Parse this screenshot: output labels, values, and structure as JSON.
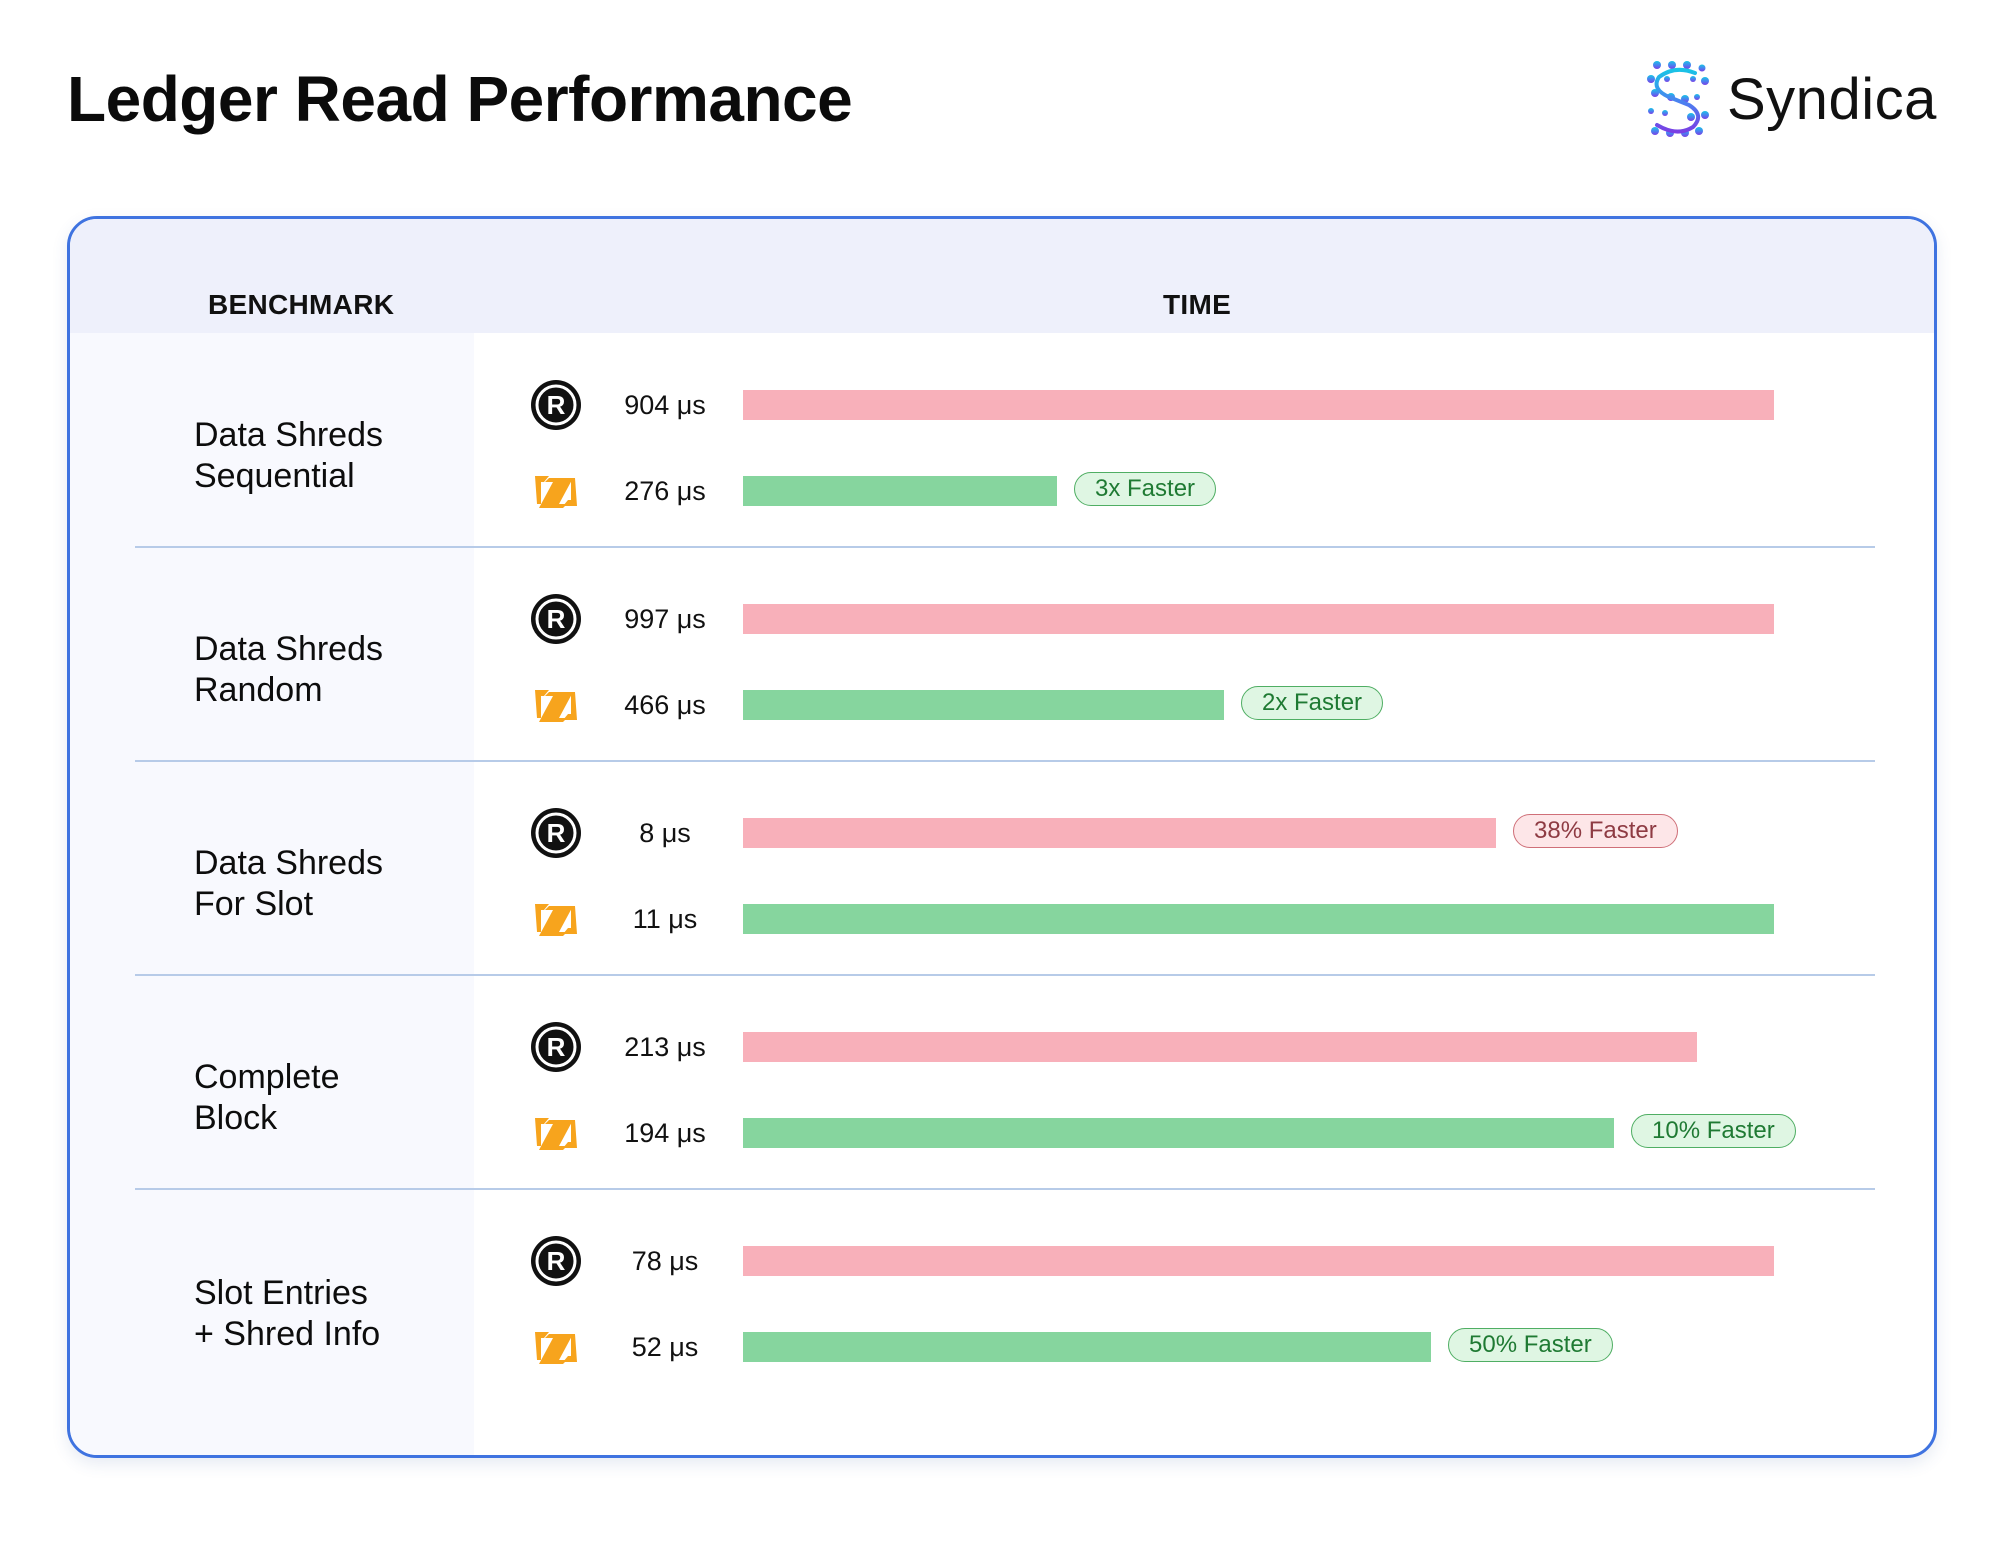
{
  "header": {
    "title": "Ledger Read Performance"
  },
  "brand": {
    "name": "Syndica"
  },
  "table": {
    "col_benchmark": "BENCHMARK",
    "col_time": "TIME"
  },
  "colors": {
    "rust_bar": "#f8b0ba",
    "zig_bar": "#86d59e",
    "card_border": "#3f73e0",
    "badge_good_text": "#1f7a33",
    "badge_bad_text": "#8e3b43"
  },
  "chart_data": {
    "type": "bar",
    "orientation": "horizontal",
    "title": "Ledger Read Performance",
    "unit": "μs",
    "series_icons": [
      "rust-logo",
      "zig-logo"
    ],
    "groups": [
      {
        "label": [
          "Data Shreds",
          "Sequential"
        ],
        "rust": {
          "value": 904,
          "text": "904 μs",
          "fill": 1.0,
          "badge": ""
        },
        "zig": {
          "value": 276,
          "text": "276 μs",
          "fill": 0.305,
          "badge": "3x Faster"
        }
      },
      {
        "label": [
          "Data Shreds",
          "Random"
        ],
        "rust": {
          "value": 997,
          "text": "997 μs",
          "fill": 1.0,
          "badge": ""
        },
        "zig": {
          "value": 466,
          "text": "466 μs",
          "fill": 0.467,
          "badge": "2x Faster"
        }
      },
      {
        "label": [
          "Data Shreds",
          "For Slot"
        ],
        "rust": {
          "value": 8,
          "text": "8 μs",
          "fill": 0.73,
          "badge": "38% Faster"
        },
        "zig": {
          "value": 11,
          "text": "11 μs",
          "fill": 1.0,
          "badge": ""
        }
      },
      {
        "label": [
          "Complete",
          "Block"
        ],
        "rust": {
          "value": 213,
          "text": "213 μs",
          "fill": 0.925,
          "badge": ""
        },
        "zig": {
          "value": 194,
          "text": "194 μs",
          "fill": 0.845,
          "badge": "10% Faster"
        }
      },
      {
        "label": [
          "Slot Entries",
          "+ Shred Info"
        ],
        "rust": {
          "value": 78,
          "text": "78 μs",
          "fill": 1.0,
          "badge": ""
        },
        "zig": {
          "value": 52,
          "text": "52 μs",
          "fill": 0.667,
          "badge": "50% Faster"
        }
      }
    ]
  }
}
